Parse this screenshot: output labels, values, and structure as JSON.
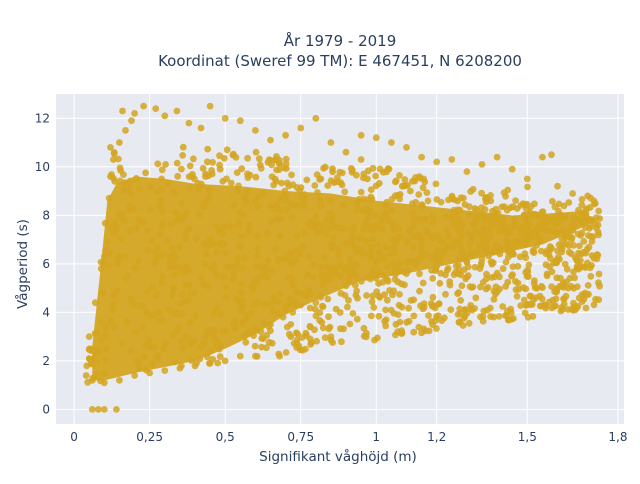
{
  "chart_data": {
    "type": "scatter",
    "title_lines": [
      "År 1979 - 2019",
      "Koordinat (Sweref 99 TM): E 467451, N 6208200"
    ],
    "xlabel": "Signifikant våghöjd (m)",
    "ylabel": "Vågperiod (s)",
    "xlim": [
      -0.06,
      1.82
    ],
    "ylim": [
      -0.6,
      13.0
    ],
    "x_ticks": [
      {
        "value": 0,
        "label": "0"
      },
      {
        "value": 0.25,
        "label": "0,25"
      },
      {
        "value": 0.5,
        "label": "0,5"
      },
      {
        "value": 0.75,
        "label": "0,75"
      },
      {
        "value": 1,
        "label": "1"
      },
      {
        "value": 1.2,
        "label": "1,2"
      },
      {
        "value": 1.5,
        "label": "1,5"
      },
      {
        "value": 1.8,
        "label": "1,8"
      }
    ],
    "y_ticks": [
      {
        "value": 0,
        "label": "0"
      },
      {
        "value": 2,
        "label": "2"
      },
      {
        "value": 4,
        "label": "4"
      },
      {
        "value": 6,
        "label": "6"
      },
      {
        "value": 8,
        "label": "8"
      },
      {
        "value": 10,
        "label": "10"
      },
      {
        "value": 12,
        "label": "12"
      }
    ],
    "grid": true,
    "legend": "none",
    "marker_color": "#d4a520",
    "plot_bg": "#e8eaf2",
    "series": [
      {
        "points": [
          [
            0.06,
            0.0
          ],
          [
            0.08,
            0.0
          ],
          [
            0.1,
            0.0
          ],
          [
            0.14,
            0.0
          ],
          [
            0.05,
            2.1
          ],
          [
            0.07,
            4.4
          ],
          [
            0.09,
            5.8
          ],
          [
            0.1,
            6.3
          ],
          [
            0.11,
            6.9
          ],
          [
            0.12,
            9.6
          ],
          [
            0.13,
            10.3
          ],
          [
            0.12,
            10.8
          ],
          [
            0.15,
            11.0
          ],
          [
            0.17,
            11.5
          ],
          [
            0.19,
            11.9
          ],
          [
            0.16,
            12.3
          ],
          [
            0.2,
            12.2
          ],
          [
            0.23,
            12.5
          ],
          [
            0.27,
            12.4
          ],
          [
            0.3,
            12.1
          ],
          [
            0.34,
            12.3
          ],
          [
            0.38,
            11.8
          ],
          [
            0.42,
            11.6
          ],
          [
            0.45,
            12.5
          ],
          [
            0.5,
            12.0
          ],
          [
            0.55,
            11.9
          ],
          [
            0.6,
            11.5
          ],
          [
            0.65,
            11.1
          ],
          [
            0.7,
            11.3
          ],
          [
            0.75,
            11.6
          ],
          [
            0.8,
            12.0
          ],
          [
            0.85,
            11.0
          ],
          [
            0.9,
            10.6
          ],
          [
            0.95,
            11.3
          ],
          [
            1.0,
            11.2
          ],
          [
            1.05,
            11.0
          ],
          [
            1.1,
            10.8
          ],
          [
            1.15,
            10.4
          ],
          [
            1.2,
            10.2
          ],
          [
            1.25,
            10.3
          ],
          [
            1.3,
            9.8
          ],
          [
            1.35,
            10.1
          ],
          [
            1.4,
            10.4
          ],
          [
            1.45,
            9.9
          ],
          [
            1.5,
            9.5
          ],
          [
            1.55,
            10.4
          ],
          [
            1.58,
            10.5
          ],
          [
            1.6,
            9.2
          ],
          [
            1.65,
            8.9
          ],
          [
            1.7,
            8.8
          ],
          [
            1.72,
            8.6
          ],
          [
            1.68,
            8.1
          ],
          [
            1.62,
            7.9
          ],
          [
            1.55,
            7.5
          ],
          [
            1.5,
            7.0
          ],
          [
            1.45,
            6.6
          ],
          [
            1.4,
            6.5
          ],
          [
            1.35,
            6.2
          ],
          [
            1.3,
            6.1
          ],
          [
            1.2,
            5.9
          ],
          [
            1.1,
            5.6
          ],
          [
            1.0,
            5.4
          ],
          [
            0.9,
            5.1
          ],
          [
            0.85,
            3.0
          ],
          [
            0.8,
            4.4
          ],
          [
            0.75,
            4.3
          ],
          [
            0.7,
            4.1
          ],
          [
            0.68,
            2.2
          ],
          [
            0.65,
            3.5
          ],
          [
            0.6,
            2.2
          ],
          [
            0.55,
            2.2
          ],
          [
            0.5,
            2.0
          ],
          [
            0.45,
            1.9
          ],
          [
            0.4,
            1.8
          ],
          [
            0.35,
            1.7
          ],
          [
            0.3,
            1.6
          ],
          [
            0.25,
            1.5
          ],
          [
            0.2,
            1.4
          ],
          [
            0.15,
            1.2
          ],
          [
            0.1,
            1.1
          ],
          [
            0.06,
            1.2
          ],
          [
            0.04,
            1.4
          ],
          [
            0.05,
            3.0
          ],
          [
            0.95,
            10.3
          ],
          [
            1.25,
            8.7
          ],
          [
            1.4,
            7.6
          ]
        ]
      }
    ]
  }
}
